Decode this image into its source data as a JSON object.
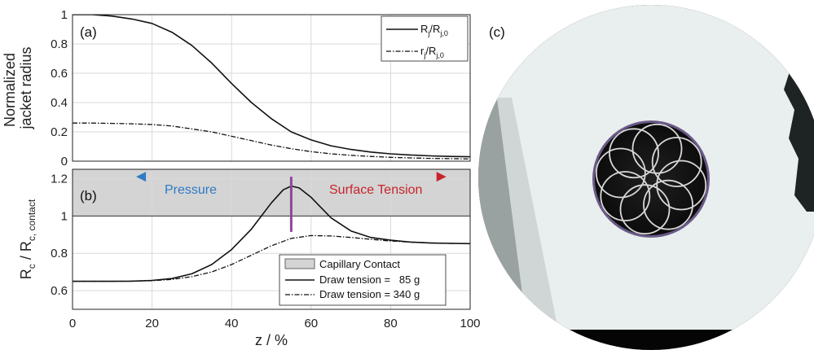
{
  "chart_data": [
    {
      "type": "line",
      "panel_label": "(a)",
      "xlabel": "",
      "ylabel": [
        "Normalized",
        "jacket radius"
      ],
      "xlim": [
        0,
        100
      ],
      "ylim": [
        0,
        1
      ],
      "x_ticks": [
        "0",
        "20",
        "40",
        "60",
        "80",
        "100"
      ],
      "y_ticks": [
        "0",
        "0.2",
        "0.4",
        "0.6",
        "0.8",
        "1"
      ],
      "grid": true,
      "legend_position": "top-right",
      "series": [
        {
          "name": "R_j/R_j,0",
          "legend_main": "R",
          "legend_sub1": "j",
          "legend_mid": "/R",
          "legend_sub2": "j,0",
          "style": "solid",
          "x": [
            0,
            5,
            10,
            15,
            20,
            25,
            30,
            35,
            40,
            45,
            50,
            55,
            60,
            65,
            70,
            75,
            80,
            85,
            90,
            95,
            100
          ],
          "y": [
            1.0,
            1.0,
            0.99,
            0.97,
            0.94,
            0.88,
            0.79,
            0.67,
            0.53,
            0.4,
            0.29,
            0.2,
            0.145,
            0.105,
            0.08,
            0.062,
            0.05,
            0.042,
            0.036,
            0.032,
            0.03
          ]
        },
        {
          "name": "r_j/R_j,0",
          "legend_main": "r",
          "legend_sub1": "j",
          "legend_mid": "/R",
          "legend_sub2": "j,0",
          "style": "dashdot",
          "x": [
            0,
            5,
            10,
            15,
            20,
            25,
            30,
            35,
            40,
            45,
            50,
            55,
            60,
            65,
            70,
            75,
            80,
            85,
            90,
            95,
            100
          ],
          "y": [
            0.26,
            0.26,
            0.258,
            0.255,
            0.25,
            0.24,
            0.22,
            0.2,
            0.17,
            0.14,
            0.11,
            0.085,
            0.065,
            0.05,
            0.04,
            0.032,
            0.026,
            0.022,
            0.019,
            0.017,
            0.015
          ]
        }
      ]
    },
    {
      "type": "line",
      "panel_label": "(b)",
      "xlabel": "z / %",
      "ylabel_main": "R",
      "ylabel_sub1": "c",
      "ylabel_mid": " / R",
      "ylabel_sub2": "c, contact",
      "xlim": [
        0,
        100
      ],
      "ylim": [
        0.5,
        1.25
      ],
      "x_ticks": [
        "0",
        "20",
        "40",
        "60",
        "80",
        "100"
      ],
      "y_ticks": [
        "0.6",
        "0.8",
        "1",
        "1.2"
      ],
      "grid": true,
      "legend_position": "bottom-right",
      "shaded_region": {
        "name": "Capillary Contact",
        "y_from": 1.0,
        "y_to": 1.25,
        "color": "#d4d4d4"
      },
      "series": [
        {
          "name": "Draw tension =   85 g",
          "style": "solid",
          "x": [
            0,
            5,
            10,
            15,
            20,
            25,
            30,
            35,
            40,
            45,
            50,
            53,
            55,
            57,
            60,
            65,
            70,
            75,
            80,
            85,
            90,
            95,
            100
          ],
          "y": [
            0.65,
            0.65,
            0.65,
            0.651,
            0.655,
            0.665,
            0.69,
            0.74,
            0.82,
            0.93,
            1.07,
            1.14,
            1.16,
            1.15,
            1.1,
            0.99,
            0.92,
            0.885,
            0.87,
            0.86,
            0.855,
            0.853,
            0.852
          ]
        },
        {
          "name": "Draw tension = 340 g",
          "style": "dashdot",
          "x": [
            0,
            5,
            10,
            15,
            20,
            25,
            30,
            35,
            40,
            45,
            50,
            55,
            60,
            65,
            70,
            75,
            80,
            85,
            90,
            95,
            100
          ],
          "y": [
            0.65,
            0.65,
            0.65,
            0.651,
            0.653,
            0.66,
            0.675,
            0.7,
            0.74,
            0.79,
            0.84,
            0.88,
            0.895,
            0.893,
            0.885,
            0.875,
            0.866,
            0.86,
            0.856,
            0.853,
            0.852
          ]
        }
      ],
      "annotations": {
        "pressure_label": "Pressure",
        "surface_tension_label": "Surface Tension",
        "arrow_left_to_x": 16,
        "arrow_right_to_x": 94,
        "arrow_y": 1.21,
        "marker_x": 55,
        "pressure_color": "#2f7bc6",
        "surface_tension_color": "#c8232a",
        "marker_color": "#8a4a93"
      }
    }
  ],
  "image_panel": {
    "label": "(c)"
  }
}
